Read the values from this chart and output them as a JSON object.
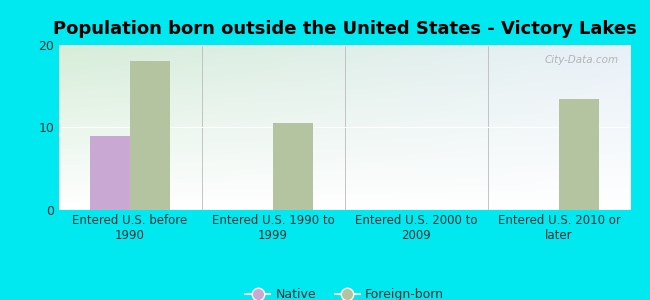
{
  "title": "Population born outside the United States - Victory Lakes",
  "categories": [
    "Entered U.S. before\n1990",
    "Entered U.S. 1990 to\n1999",
    "Entered U.S. 2000 to\n2009",
    "Entered U.S. 2010 or\nlater"
  ],
  "native_values": [
    9,
    0,
    0,
    0
  ],
  "foreign_values": [
    18,
    10.5,
    0,
    13.5
  ],
  "native_color": "#c9a8d4",
  "foreign_color": "#b5c4a0",
  "bar_width": 0.28,
  "ylim": [
    0,
    20
  ],
  "yticks": [
    0,
    10,
    20
  ],
  "background_outer": "#00e8f0",
  "bg_color_topleft": "#d6edd8",
  "bg_color_topright": "#e8f0f8",
  "bg_color_bottom": "#ffffff",
  "title_fontsize": 13,
  "tick_label_fontsize": 8.5,
  "tick_label_color": "#333333",
  "legend_fontsize": 9,
  "watermark": "City-Data.com"
}
